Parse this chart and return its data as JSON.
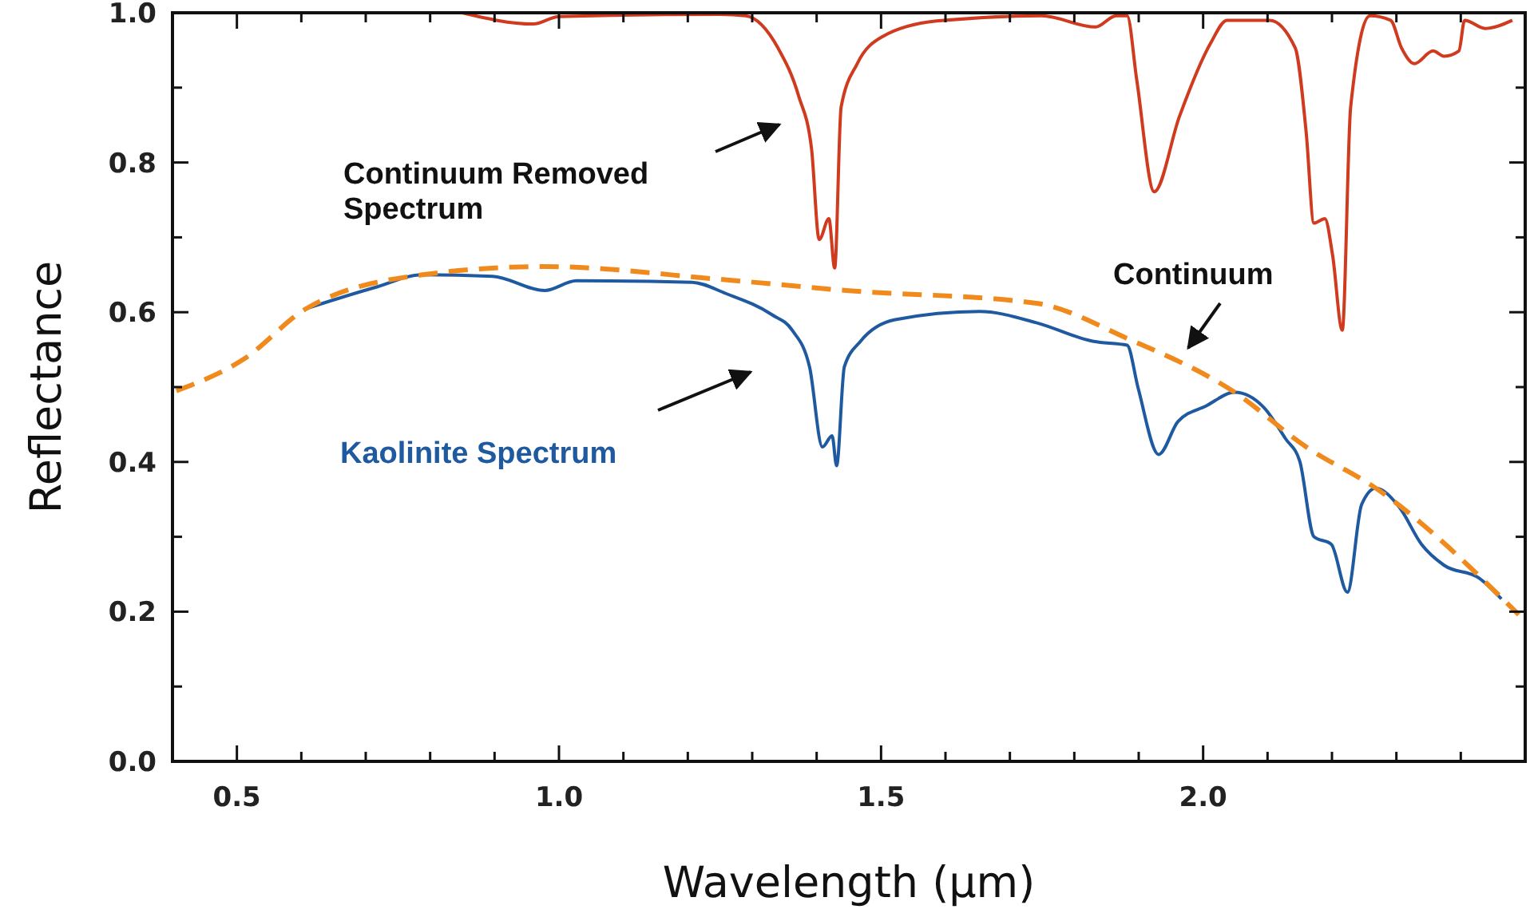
{
  "chart_data": {
    "type": "line",
    "xlabel": "Wavelength (µm)",
    "ylabel": "Reflectance",
    "xlim": [
      0.4,
      2.5
    ],
    "ylim": [
      0,
      1
    ],
    "xticks": [
      {
        "value": 0.5,
        "label": "0.5"
      },
      {
        "value": 0.6,
        "label": null
      },
      {
        "value": 0.7,
        "label": null
      },
      {
        "value": 0.8,
        "label": null
      },
      {
        "value": 0.9,
        "label": null
      },
      {
        "value": 1.0,
        "label": "1.0"
      },
      {
        "value": 1.1,
        "label": null
      },
      {
        "value": 1.2,
        "label": null
      },
      {
        "value": 1.3,
        "label": null
      },
      {
        "value": 1.4,
        "label": null
      },
      {
        "value": 1.5,
        "label": "1.5"
      },
      {
        "value": 1.6,
        "label": null
      },
      {
        "value": 1.7,
        "label": null
      },
      {
        "value": 1.8,
        "label": null
      },
      {
        "value": 1.9,
        "label": null
      },
      {
        "value": 2.0,
        "label": "2.0"
      },
      {
        "value": 2.1,
        "label": null
      },
      {
        "value": 2.2,
        "label": null
      },
      {
        "value": 2.3,
        "label": null
      },
      {
        "value": 2.4,
        "label": null
      }
    ],
    "yticks": [
      {
        "value": 0,
        "label": "0.0"
      },
      {
        "value": 0.1,
        "label": null
      },
      {
        "value": 0.2,
        "label": "0.2"
      },
      {
        "value": 0.3,
        "label": null
      },
      {
        "value": 0.4,
        "label": "0.4"
      },
      {
        "value": 0.5,
        "label": null
      },
      {
        "value": 0.6,
        "label": "0.6"
      },
      {
        "value": 0.7,
        "label": null
      },
      {
        "value": 0.8,
        "label": "0.8"
      },
      {
        "value": 0.9,
        "label": null
      },
      {
        "value": 1.0,
        "label": "1.0"
      }
    ],
    "grid": false,
    "marker": "none",
    "series": [
      {
        "color": "#d03a1f",
        "line_style": "solid",
        "x": [
          0.85,
          0.96,
          1.0,
          1.25,
          1.29,
          1.34,
          1.372,
          1.392,
          1.404,
          1.419,
          1.428,
          1.438,
          1.463,
          1.502,
          1.586,
          1.749,
          1.833,
          1.865,
          1.882,
          1.897,
          1.924,
          1.963,
          2.012,
          2.037,
          2.103,
          2.143,
          2.16,
          2.172,
          2.189,
          2.201,
          2.216,
          2.229,
          2.259,
          2.291,
          2.308,
          2.328,
          2.357,
          2.374,
          2.397,
          2.406,
          2.438,
          2.48
        ],
        "values": [
          1.0,
          0.985,
          0.995,
          0.998,
          0.996,
          0.953,
          0.889,
          0.819,
          0.697,
          0.725,
          0.659,
          0.874,
          0.932,
          0.968,
          0.989,
          0.996,
          0.981,
          0.996,
          0.996,
          0.91,
          0.761,
          0.861,
          0.96,
          0.99,
          0.99,
          0.953,
          0.84,
          0.719,
          0.725,
          0.676,
          0.576,
          0.874,
          0.996,
          0.99,
          0.953,
          0.932,
          0.949,
          0.942,
          0.949,
          0.99,
          0.979,
          0.99
        ]
      },
      {
        "color": "#1f5aa0",
        "line_style": "solid",
        "x": [
          0.608,
          0.714,
          0.788,
          0.897,
          0.978,
          1.027,
          1.207,
          1.259,
          1.33,
          1.362,
          1.389,
          1.409,
          1.424,
          1.431,
          1.443,
          1.468,
          1.522,
          1.653,
          1.741,
          1.83,
          1.882,
          1.899,
          1.931,
          1.961,
          2.005,
          2.049,
          2.094,
          2.128,
          2.15,
          2.172,
          2.199,
          2.224,
          2.246,
          2.268,
          2.305,
          2.339,
          2.374,
          2.428,
          2.463
        ],
        "values": [
          0.605,
          0.633,
          0.65,
          0.648,
          0.629,
          0.642,
          0.64,
          0.625,
          0.597,
          0.576,
          0.527,
          0.42,
          0.435,
          0.395,
          0.527,
          0.561,
          0.59,
          0.601,
          0.586,
          0.561,
          0.556,
          0.499,
          0.41,
          0.454,
          0.475,
          0.493,
          0.473,
          0.431,
          0.401,
          0.3,
          0.29,
          0.226,
          0.343,
          0.365,
          0.339,
          0.29,
          0.262,
          0.245,
          0.217
        ]
      },
      {
        "color": "#f08a1c",
        "line_style": "dashed",
        "x": [
          0.406,
          0.51,
          0.608,
          0.788,
          0.978,
          1.249,
          1.446,
          1.741,
          1.882,
          2.049,
          2.16,
          2.268,
          2.49
        ],
        "values": [
          0.495,
          0.537,
          0.605,
          0.65,
          0.661,
          0.644,
          0.629,
          0.612,
          0.565,
          0.493,
          0.42,
          0.365,
          0.196
        ]
      }
    ],
    "annotations": [
      "Continuum Removed Spectrum",
      "Continuum",
      "Kaolinite Spectrum"
    ]
  }
}
